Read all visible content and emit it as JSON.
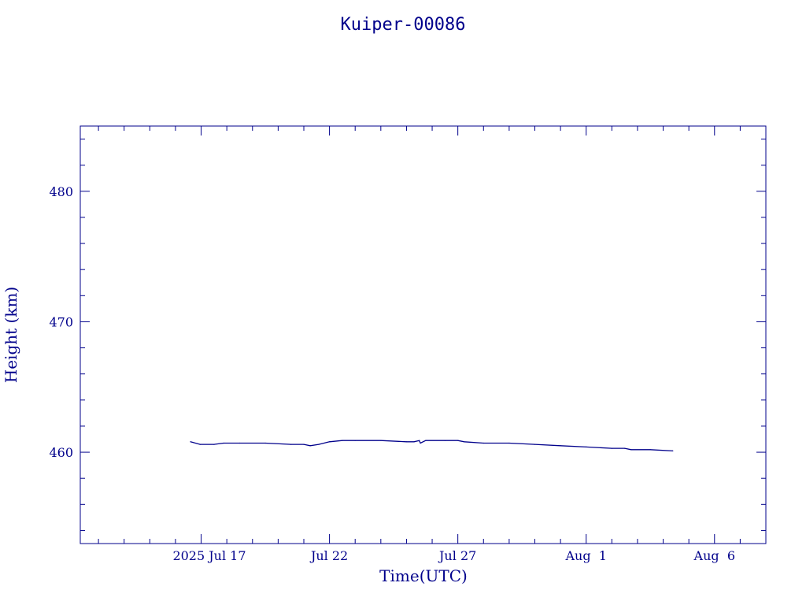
{
  "title": "Kuiper-00086",
  "colors": {
    "ink": "#00008b",
    "background": "#ffffff"
  },
  "chart_data": {
    "type": "line",
    "title": "Kuiper-00086",
    "xlabel": "Time(UTC)",
    "ylabel": "Height (km)",
    "xlim": [
      "2025-07-12T07:00",
      "2025-08-08T00:00"
    ],
    "ylim": [
      453,
      485
    ],
    "grid": false,
    "legend": "none",
    "x_ticks": [
      {
        "date": "2025-07-17",
        "label": "2025 Jul 17"
      },
      {
        "date": "2025-07-22",
        "label": "Jul 22"
      },
      {
        "date": "2025-07-27",
        "label": "Jul 27"
      },
      {
        "date": "2025-08-01",
        "label": "Aug  1"
      },
      {
        "date": "2025-08-06",
        "label": "Aug  6"
      }
    ],
    "y_ticks": [
      {
        "value": 460,
        "label": "460"
      },
      {
        "value": 470,
        "label": "470"
      },
      {
        "value": 480,
        "label": "480"
      }
    ],
    "series": [
      {
        "points": [
          [
            "2025-07-16T14:00",
            460.8
          ],
          [
            "2025-07-16T23:00",
            460.6
          ],
          [
            "2025-07-17T12:00",
            460.6
          ],
          [
            "2025-07-17T21:00",
            460.7
          ],
          [
            "2025-07-18T12:00",
            460.7
          ],
          [
            "2025-07-19T12:00",
            460.7
          ],
          [
            "2025-07-20T12:00",
            460.6
          ],
          [
            "2025-07-21T00:00",
            460.6
          ],
          [
            "2025-07-21T06:00",
            460.5
          ],
          [
            "2025-07-21T14:00",
            460.6
          ],
          [
            "2025-07-22T00:00",
            460.8
          ],
          [
            "2025-07-22T12:00",
            460.9
          ],
          [
            "2025-07-23T00:00",
            460.9
          ],
          [
            "2025-07-24T00:00",
            460.9
          ],
          [
            "2025-07-25T00:00",
            460.8
          ],
          [
            "2025-07-25T07:00",
            460.8
          ],
          [
            "2025-07-25T12:00",
            460.9
          ],
          [
            "2025-07-25T13:00",
            460.7
          ],
          [
            "2025-07-25T18:00",
            460.9
          ],
          [
            "2025-07-26T12:00",
            460.9
          ],
          [
            "2025-07-27T00:00",
            460.9
          ],
          [
            "2025-07-27T06:00",
            460.8
          ],
          [
            "2025-07-28T00:00",
            460.7
          ],
          [
            "2025-07-29T00:00",
            460.7
          ],
          [
            "2025-07-30T00:00",
            460.6
          ],
          [
            "2025-07-31T00:00",
            460.5
          ],
          [
            "2025-08-01T00:00",
            460.4
          ],
          [
            "2025-08-02T00:00",
            460.3
          ],
          [
            "2025-08-02T12:00",
            460.3
          ],
          [
            "2025-08-02T18:00",
            460.2
          ],
          [
            "2025-08-03T12:00",
            460.2
          ],
          [
            "2025-08-04T09:00",
            460.1
          ]
        ]
      }
    ]
  }
}
